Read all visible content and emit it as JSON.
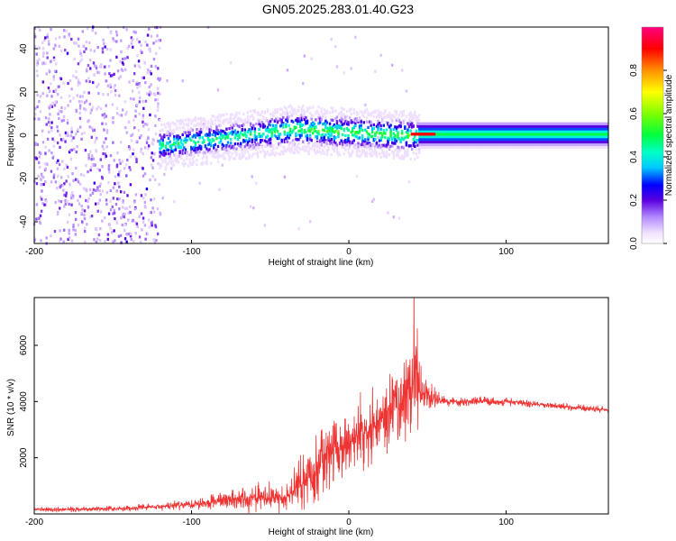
{
  "title": "GN05.2025.283.01.40.G23",
  "chart_data": [
    {
      "type": "heatmap",
      "name": "spectrogram",
      "xlabel": "Height of straight line (km)",
      "ylabel": "Frequency (Hz)",
      "xlim": [
        -200,
        165
      ],
      "ylim": [
        -50,
        50
      ],
      "x_ticks": [
        -200,
        -100,
        0,
        100
      ],
      "y_ticks": [
        -40,
        -20,
        0,
        20,
        40
      ],
      "colorbar": {
        "label": "Normalized spectral amplitude",
        "range": [
          0,
          1
        ],
        "ticks": [
          0.0,
          0.2,
          0.4,
          0.6,
          0.8
        ]
      },
      "regions": [
        {
          "x_range": [
            -200,
            -120
          ],
          "description": "diffuse low-amplitude noise across full band",
          "amplitude": 0.15
        },
        {
          "x_range": [
            -120,
            45
          ],
          "description": "signal band near 0 Hz, width ~ ±10 Hz",
          "amplitude": 0.4
        },
        {
          "x_range": [
            45,
            165
          ],
          "description": "narrow stable signal near 0 Hz",
          "amplitude": 0.5
        }
      ]
    },
    {
      "type": "line",
      "name": "snr",
      "xlabel": "Height of straight line (km)",
      "ylabel": "SNR (10 * v/v)",
      "xlim": [
        -200,
        165
      ],
      "ylim": [
        0,
        7700
      ],
      "x_ticks": [
        -200,
        -100,
        0,
        100
      ],
      "y_ticks": [
        2000,
        4000,
        6000
      ],
      "series": [
        {
          "name": "SNR",
          "color": "#ee3333",
          "envelope": {
            "x": [
              -200,
              -150,
              -120,
              -100,
              -80,
              -60,
              -40,
              -30,
              -20,
              -10,
              0,
              10,
              20,
              30,
              40,
              50,
              60,
              80,
              100,
              120,
              140,
              165
            ],
            "mean": [
              150,
              180,
              250,
              350,
              500,
              550,
              600,
              1100,
              1700,
              2200,
              2600,
              3000,
              3400,
              3800,
              4400,
              4200,
              4000,
              4000,
              4000,
              3900,
              3800,
              3700
            ],
            "amp": [
              100,
              120,
              150,
              250,
              400,
              600,
              700,
              1200,
              1500,
              1400,
              1400,
              1500,
              1600,
              1800,
              2200,
              700,
              250,
              200,
              200,
              150,
              150,
              150
            ]
          }
        }
      ]
    }
  ]
}
